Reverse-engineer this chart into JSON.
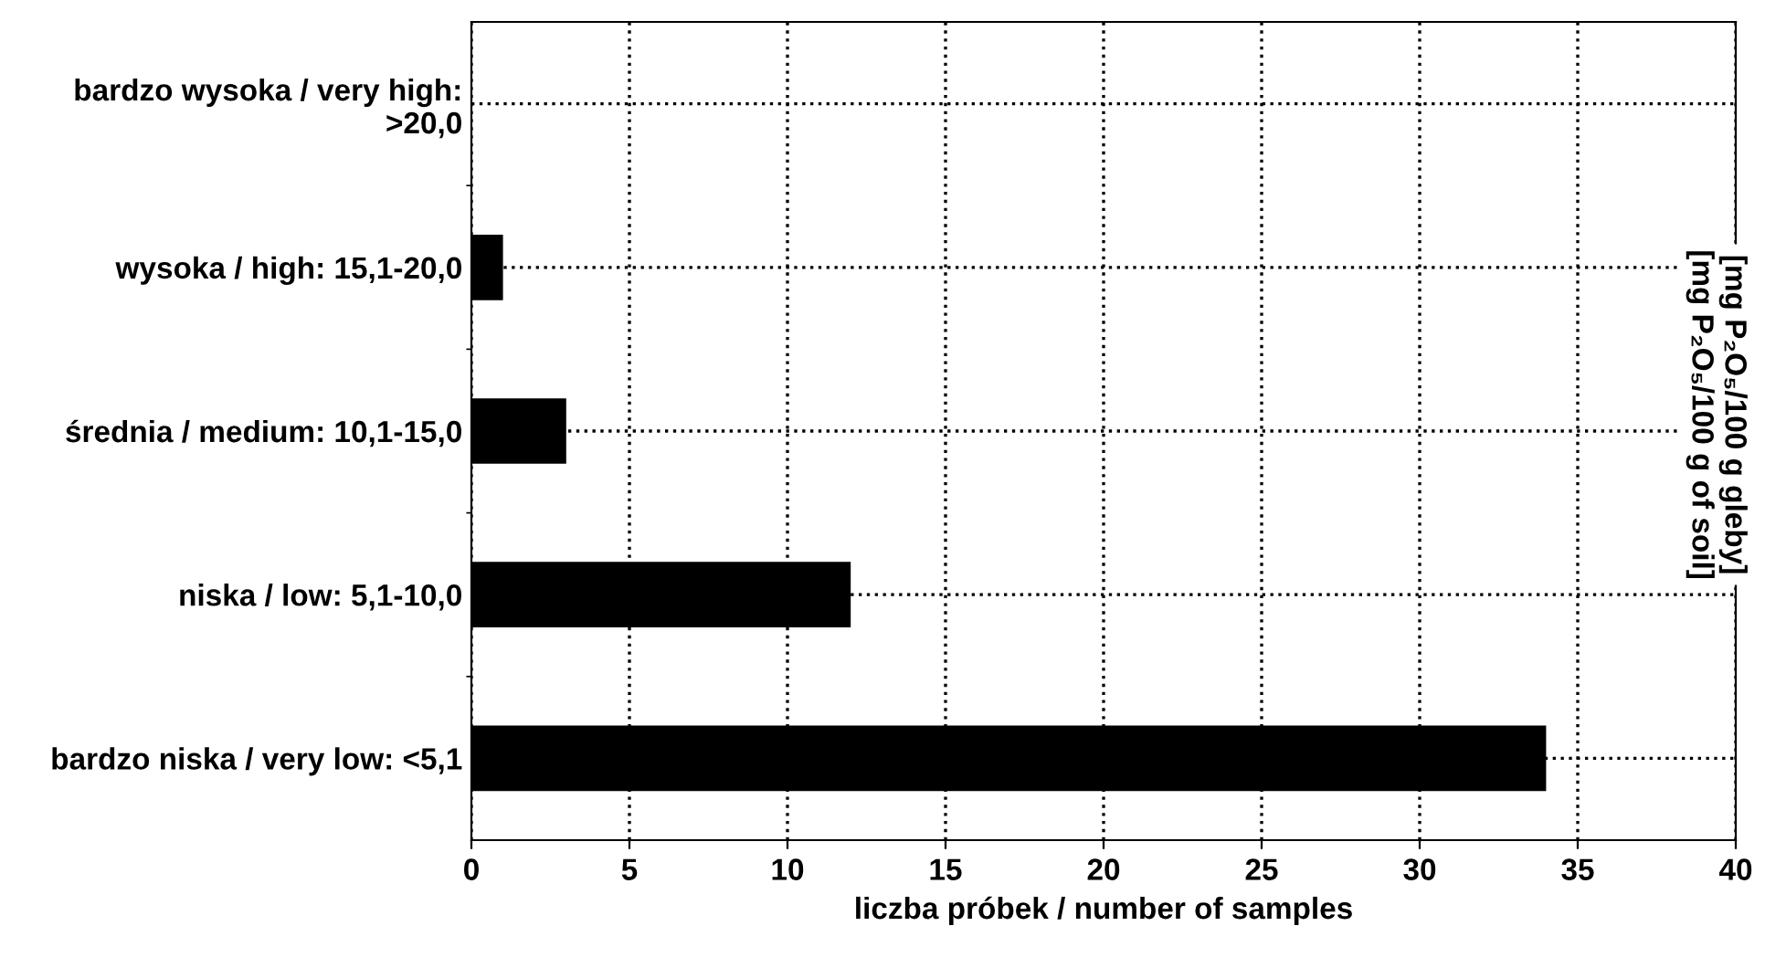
{
  "chart_data": {
    "type": "bar",
    "orientation": "horizontal",
    "categories": [
      "bardzo wysoka / very high: >20,0",
      "wysoka / high: 15,1-20,0",
      "średnia / medium: 10,1-15,0",
      "niska / low: 5,1-10,0",
      "bardzo niska / very low: <5,1"
    ],
    "values": [
      0,
      1,
      3,
      12,
      34
    ],
    "color": "#000000",
    "xlabel": "liczba próbek / number of samples",
    "xlim": [
      0,
      40
    ],
    "xticks": [
      0,
      5,
      10,
      15,
      20,
      25,
      30,
      35,
      40
    ],
    "grid": true,
    "line_style": "dotted",
    "annotations": [
      "[mg P₂O₅/100 g gleby]\n[mg P₂O₅/100 g of soil]"
    ]
  }
}
